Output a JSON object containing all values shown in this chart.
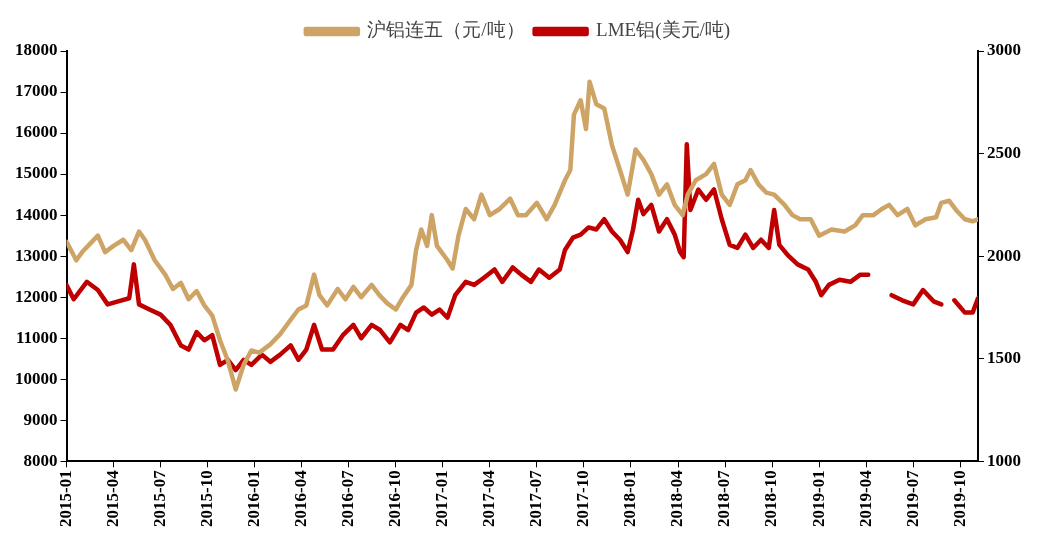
{
  "chart_data": {
    "type": "line",
    "legend": "top",
    "grid": false,
    "marker": "none",
    "line_style": "solid",
    "xlim": [
      "2015-01-01",
      "2019-11-05"
    ],
    "xticks": [
      "2015-01",
      "2015-04",
      "2015-07",
      "2015-10",
      "2016-01",
      "2016-04",
      "2016-07",
      "2016-10",
      "2017-01",
      "2017-04",
      "2017-07",
      "2017-10",
      "2018-01",
      "2018-04",
      "2018-07",
      "2018-10",
      "2019-01",
      "2019-04",
      "2019-07",
      "2019-10"
    ],
    "ylim": [
      8000,
      18000
    ],
    "yticks": [
      8000,
      9000,
      10000,
      11000,
      12000,
      13000,
      14000,
      15000,
      16000,
      17000,
      18000
    ],
    "y2lim": [
      1000,
      3000
    ],
    "y2ticks": [
      1000,
      1500,
      2000,
      2500,
      3000
    ],
    "series": [
      {
        "name": "沪铝连五（元/吨）",
        "color": "#cda465",
        "x": [
          "2015-01-01",
          "2015-01-20",
          "2015-02-01",
          "2015-03-01",
          "2015-03-15",
          "2015-04-01",
          "2015-04-20",
          "2015-05-05",
          "2015-05-20",
          "2015-06-01",
          "2015-06-20",
          "2015-07-10",
          "2015-07-25",
          "2015-08-10",
          "2015-08-25",
          "2015-09-10",
          "2015-09-25",
          "2015-10-10",
          "2015-10-25",
          "2015-11-10",
          "2015-11-25",
          "2015-12-10",
          "2015-12-25",
          "2016-01-10",
          "2016-02-01",
          "2016-02-20",
          "2016-03-10",
          "2016-03-25",
          "2016-04-10",
          "2016-04-25",
          "2016-05-05",
          "2016-05-20",
          "2016-06-10",
          "2016-06-25",
          "2016-07-10",
          "2016-07-25",
          "2016-08-15",
          "2016-08-30",
          "2016-09-15",
          "2016-10-01",
          "2016-10-15",
          "2016-11-01",
          "2016-11-10",
          "2016-11-20",
          "2016-12-01",
          "2016-12-10",
          "2016-12-20",
          "2017-01-10",
          "2017-01-20",
          "2017-02-01",
          "2017-02-15",
          "2017-03-01",
          "2017-03-15",
          "2017-04-01",
          "2017-04-20",
          "2017-05-10",
          "2017-05-25",
          "2017-06-10",
          "2017-07-01",
          "2017-07-20",
          "2017-08-05",
          "2017-08-25",
          "2017-09-05",
          "2017-09-12",
          "2017-09-25",
          "2017-10-05",
          "2017-10-12",
          "2017-10-25",
          "2017-11-10",
          "2017-11-25",
          "2017-12-10",
          "2017-12-25",
          "2018-01-10",
          "2018-01-25",
          "2018-02-10",
          "2018-02-25",
          "2018-03-10",
          "2018-03-25",
          "2018-04-10",
          "2018-04-20",
          "2018-05-05",
          "2018-05-25",
          "2018-06-10",
          "2018-06-25",
          "2018-07-10",
          "2018-07-25",
          "2018-08-10",
          "2018-08-20",
          "2018-09-05",
          "2018-09-20",
          "2018-10-05",
          "2018-10-25",
          "2018-11-10",
          "2018-11-25",
          "2018-12-15",
          "2019-01-01",
          "2019-01-25",
          "2019-02-20",
          "2019-03-10",
          "2019-03-25",
          "2019-04-15",
          "2019-05-01",
          "2019-05-15",
          "2019-06-01",
          "2019-06-20",
          "2019-07-05",
          "2019-07-25",
          "2019-08-15",
          "2019-08-25",
          "2019-09-10",
          "2019-09-25",
          "2019-10-10",
          "2019-10-25",
          "2019-11-05"
        ],
        "values": [
          13350,
          12900,
          13100,
          13500,
          13100,
          13250,
          13400,
          13150,
          13600,
          13400,
          12900,
          12550,
          12200,
          12350,
          11950,
          12150,
          11800,
          11550,
          10950,
          10450,
          9750,
          10350,
          10700,
          10650,
          10850,
          11100,
          11450,
          11700,
          11800,
          12550,
          12050,
          11800,
          12200,
          11950,
          12250,
          12000,
          12300,
          12050,
          11850,
          11700,
          12000,
          12300,
          13150,
          13650,
          13250,
          14000,
          13250,
          12900,
          12700,
          13500,
          14150,
          13900,
          14500,
          14000,
          14150,
          14400,
          14000,
          14000,
          14300,
          13900,
          14250,
          14850,
          15100,
          16450,
          16800,
          16100,
          17250,
          16700,
          16600,
          15700,
          15100,
          14500,
          15600,
          15350,
          15000,
          14500,
          14750,
          14250,
          14000,
          14500,
          14850,
          15000,
          15250,
          14500,
          14250,
          14750,
          14850,
          15100,
          14750,
          14550,
          14500,
          14250,
          14000,
          13900,
          13900,
          13500,
          13650,
          13600,
          13750,
          14000,
          14000,
          14150,
          14250,
          14000,
          14150,
          13750,
          13900,
          13950,
          14300,
          14350,
          14100,
          13900,
          13850,
          13900
        ]
      },
      {
        "name": "LME铝(美元/吨)",
        "color": "#c00000",
        "axis": "y2",
        "x": [
          "2015-01-01",
          "2015-01-15",
          "2015-02-10",
          "2015-03-01",
          "2015-03-20",
          "2015-04-10",
          "2015-05-01",
          "2015-05-10",
          "2015-05-20",
          "2015-06-10",
          "2015-07-01",
          "2015-07-20",
          "2015-08-10",
          "2015-08-25",
          "2015-09-10",
          "2015-09-25",
          "2015-10-10",
          "2015-10-25",
          "2015-11-10",
          "2015-11-25",
          "2015-12-10",
          "2015-12-25",
          "2016-01-15",
          "2016-02-01",
          "2016-02-20",
          "2016-03-10",
          "2016-03-25",
          "2016-04-10",
          "2016-04-25",
          "2016-05-10",
          "2016-06-01",
          "2016-06-20",
          "2016-07-10",
          "2016-07-25",
          "2016-08-15",
          "2016-09-01",
          "2016-09-20",
          "2016-10-10",
          "2016-10-25",
          "2016-11-10",
          "2016-11-25",
          "2016-12-10",
          "2016-12-25",
          "2017-01-10",
          "2017-01-25",
          "2017-02-15",
          "2017-03-01",
          "2017-03-20",
          "2017-04-10",
          "2017-04-25",
          "2017-05-15",
          "2017-06-01",
          "2017-06-20",
          "2017-07-05",
          "2017-07-25",
          "2017-08-15",
          "2017-08-25",
          "2017-09-10",
          "2017-09-25",
          "2017-10-10",
          "2017-10-25",
          "2017-11-10",
          "2017-11-25",
          "2017-12-10",
          "2017-12-25",
          "2018-01-05",
          "2018-01-15",
          "2018-01-25",
          "2018-02-10",
          "2018-02-25",
          "2018-03-10",
          "2018-03-25",
          "2018-04-05",
          "2018-04-12",
          "2018-04-18",
          "2018-04-25",
          "2018-05-10",
          "2018-05-25",
          "2018-06-10",
          "2018-06-25",
          "2018-07-10",
          "2018-07-25",
          "2018-08-10",
          "2018-08-25",
          "2018-09-10",
          "2018-09-25",
          "2018-10-05",
          "2018-10-15",
          "2018-11-01",
          "2018-11-20",
          "2018-12-10",
          "2018-12-25",
          "2019-01-05",
          "2019-01-20",
          "2019-02-10",
          "2019-03-01",
          "2019-03-20",
          "2019-04-05",
          "2019-04-20",
          "2019-05-05",
          "2019-05-20",
          "2019-06-10",
          "2019-07-01",
          "2019-07-20",
          "2019-08-10",
          "2019-08-25",
          "2019-09-05",
          "2019-09-20",
          "2019-10-10",
          "2019-10-25",
          "2019-11-05"
        ],
        "values": [
          1860,
          1790,
          1875,
          1835,
          1765,
          1780,
          1795,
          1960,
          1765,
          1740,
          1715,
          1665,
          1565,
          1545,
          1630,
          1590,
          1615,
          1470,
          1495,
          1445,
          1495,
          1470,
          1520,
          1485,
          1520,
          1565,
          1495,
          1545,
          1665,
          1545,
          1545,
          1615,
          1665,
          1600,
          1665,
          1640,
          1580,
          1665,
          1640,
          1725,
          1750,
          1715,
          1740,
          1700,
          1810,
          1875,
          1860,
          1895,
          1935,
          1875,
          1945,
          1910,
          1875,
          1935,
          1895,
          1935,
          2030,
          2090,
          2105,
          2140,
          2130,
          2180,
          2120,
          2080,
          2020,
          2130,
          2275,
          2205,
          2250,
          2120,
          2180,
          2105,
          2020,
          1995,
          2545,
          2225,
          2325,
          2275,
          2325,
          2180,
          2055,
          2040,
          2105,
          2040,
          2080,
          2040,
          2225,
          2055,
          2005,
          1960,
          1935,
          1875,
          1810,
          1860,
          1885,
          1875,
          1910,
          1910,
          null,
          null,
          1810,
          1785,
          1765,
          1835,
          1780,
          1765,
          null,
          1785,
          1725,
          1725,
          1795
        ]
      }
    ]
  }
}
